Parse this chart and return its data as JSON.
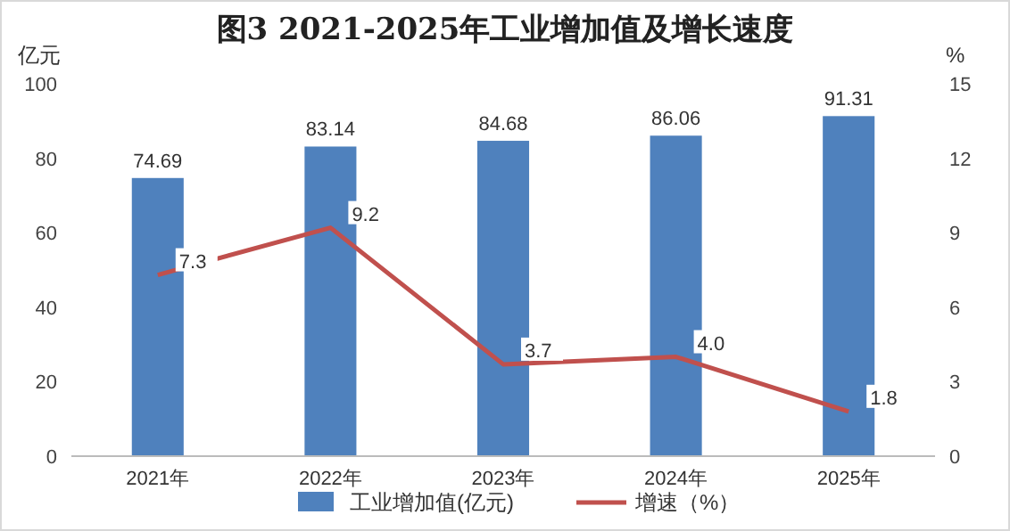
{
  "chart_data": {
    "type": "bar",
    "title": "图3 2021-2025年工业增加值及增长速度",
    "ylabel": "亿元",
    "y2label": "%",
    "categories": [
      "2021年",
      "2022年",
      "2023年",
      "2024年",
      "2025年"
    ],
    "series": [
      {
        "name": "工业增加值(亿元)",
        "color": "#4f81bd",
        "values": [
          74.69,
          83.14,
          84.68,
          86.06,
          91.31
        ],
        "value_labels": [
          "74.69",
          "83.14",
          "84.68",
          "86.06",
          "91.31"
        ]
      },
      {
        "name": "增速（%）",
        "type": "line",
        "axis": "y2",
        "color": "#c0504d",
        "values": [
          7.3,
          9.2,
          3.7,
          4.0,
          1.8
        ],
        "value_labels": [
          "7.3",
          "9.2",
          "3.7",
          "4.0",
          "1.8"
        ]
      }
    ],
    "ylim": [
      0,
      100
    ],
    "yticks": [
      0,
      20,
      40,
      60,
      80,
      100
    ],
    "y2lim": [
      0,
      15
    ],
    "y2ticks": [
      0,
      3,
      6,
      9,
      12,
      15
    ],
    "legend": "bottom",
    "grid": false,
    "marker": "none",
    "line_style": "solid"
  }
}
